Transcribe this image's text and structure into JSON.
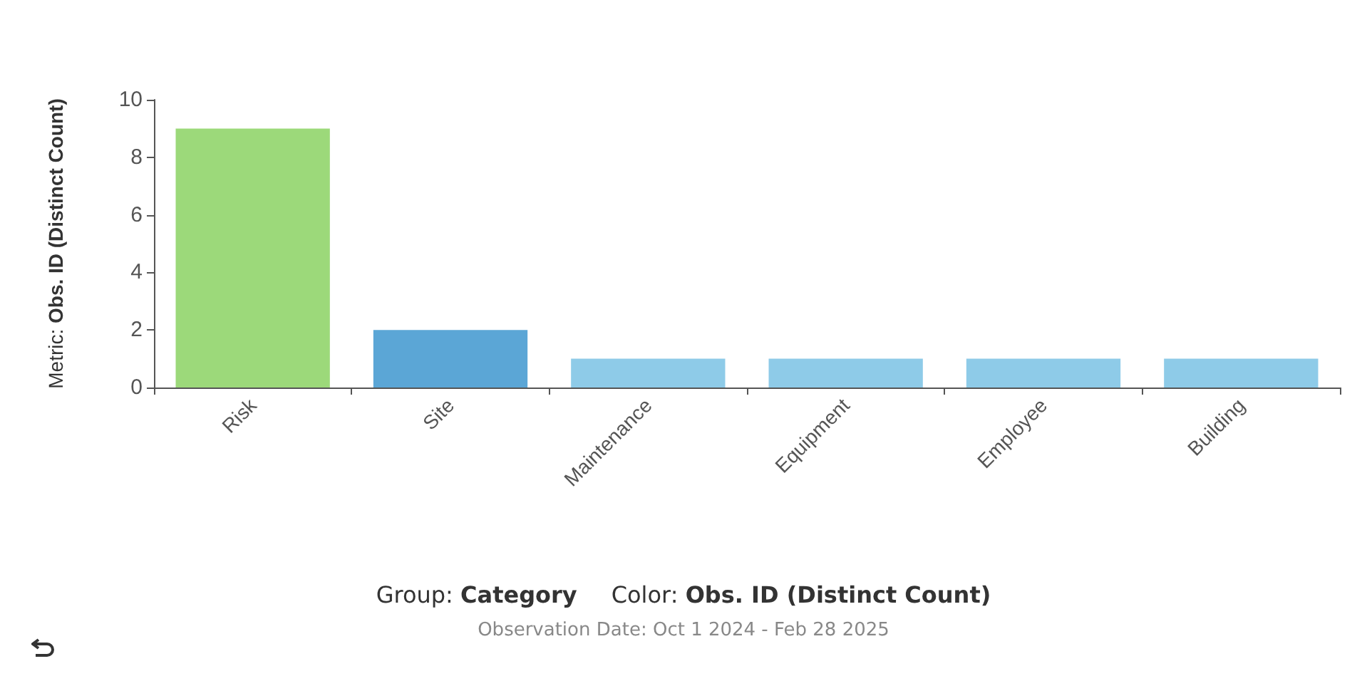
{
  "chart_data": {
    "type": "bar",
    "ylabel": "Metric: Obs. ID (Distinct Count)",
    "categories": [
      "Risk",
      "Site",
      "Maintenance",
      "Equipment",
      "Employee",
      "Building"
    ],
    "values": [
      9,
      2,
      1,
      1,
      1,
      1
    ],
    "colors": [
      "#9cd97a",
      "#5ba6d6",
      "#8ecbe8",
      "#8ecbe8",
      "#8ecbe8",
      "#8ecbe8"
    ],
    "ylim": [
      0,
      10
    ],
    "yticks": [
      0,
      2,
      4,
      6,
      8,
      10
    ],
    "grid": false,
    "annotations": [
      "Group: Category",
      "Color: Obs. ID (Distinct Count)",
      "Observation Date: Oct 1 2024 - Feb 28 2025"
    ]
  }
}
